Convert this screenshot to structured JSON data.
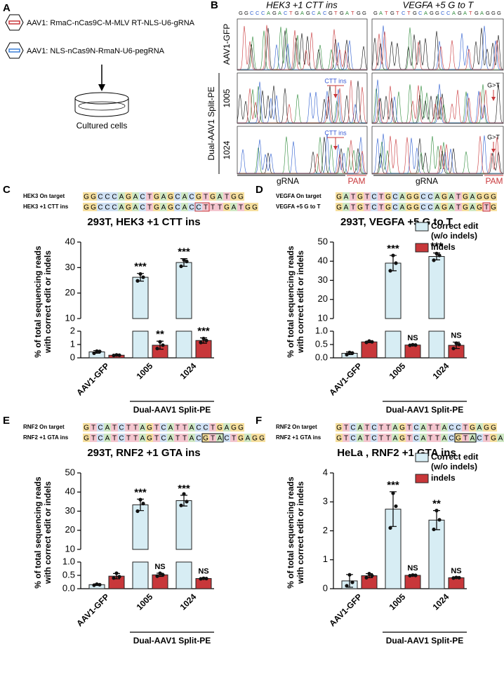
{
  "panel_labels": [
    "A",
    "B",
    "C",
    "D",
    "E",
    "F"
  ],
  "panel_a": {
    "constructs": [
      "AAV1: RmaC-nCas9C-M-MLV RT-NLS-U6-gRNA",
      "AAV1: NLS-nCas9N-RmaN-U6-pegRNA"
    ],
    "target": "Cultured cells"
  },
  "panel_b": {
    "columns": [
      {
        "title": "HEK3 +1 CTT ins",
        "sequence": "GGCCCAGACTGAGCACGTGATGG",
        "edit_label": "CTT ins"
      },
      {
        "title": "VEGFA +5 G to T",
        "sequence": "GATGTCTGCAGGCCAGATGAGGG",
        "edit_label": "G>T"
      }
    ],
    "rows": [
      "AAV1-GFP",
      "1005",
      "1024"
    ],
    "group_label": "Dual-AAV1 Split-PE",
    "footer": [
      "gRNA",
      "PAM"
    ]
  },
  "chart_data": [
    {
      "type": "bar",
      "title": "293T, HEK3 +1 CTT ins",
      "sequences": [
        {
          "label": "HEK3 On target",
          "sequence": "GGCCCAGACTGAGCACGTGATGG"
        },
        {
          "label": "HEK3 +1 CTT ins",
          "sequence": "GGCCCAGACTGAGCACCTTTGATGG"
        }
      ],
      "y_label": [
        "% of total sequencing reads",
        "with correct edit or indels"
      ],
      "categories": [
        "AAV1-GFP",
        "1005",
        "1024"
      ],
      "group_label": "Dual-AAV1 Split-PE",
      "ylim_lower": [
        0,
        2
      ],
      "yticks_lower": [
        0,
        1,
        2
      ],
      "ylim_upper": [
        10,
        40
      ],
      "yticks_upper": [
        10,
        20,
        30,
        40
      ],
      "legend": false,
      "series": [
        {
          "name": "Correct edit (w/o indels)",
          "color": "#d7edf4",
          "values": [
            0.45,
            26.2,
            32
          ],
          "errors": [
            0.1,
            1.5,
            1.5
          ],
          "points": [
            [
              0.35,
              0.5,
              0.48
            ],
            [
              24.8,
              27.5,
              26.2
            ],
            [
              30.5,
              33,
              32.4
            ]
          ],
          "annotations": [
            null,
            "***",
            "***"
          ]
        },
        {
          "name": "indels",
          "color": "#c8373a",
          "values": [
            0.2,
            0.95,
            1.3
          ],
          "errors": [
            0.05,
            0.3,
            0.2
          ],
          "points": [
            [
              0.18,
              0.22,
              0.2
            ],
            [
              0.7,
              1.2,
              0.95
            ],
            [
              1.15,
              1.45,
              1.3
            ]
          ],
          "annotations": [
            null,
            "**",
            "***"
          ]
        }
      ]
    },
    {
      "type": "bar",
      "title": "293T, VEGFA +5 G to T",
      "sequences": [
        {
          "label": "VEGFA On target",
          "sequence": "GATGTCTGCAGGCCAGATGAGGG"
        },
        {
          "label": "VEGFA +5 G to T",
          "sequence": "GATGTCTGCAGGCCAGATGAGTG"
        }
      ],
      "y_label": [
        "% of total sequencing reads",
        "with correct edit or indels"
      ],
      "categories": [
        "AAV1-GFP",
        "1005",
        "1024"
      ],
      "group_label": "Dual-AAV1 Split-PE",
      "ylim_lower": [
        0,
        1
      ],
      "yticks_lower": [
        {
          "value": 0,
          "label": "0.0"
        },
        0.5,
        {
          "value": 1,
          "label": "1.0"
        }
      ],
      "ylim_upper": [
        10,
        50
      ],
      "yticks_upper": [
        10,
        20,
        30,
        40,
        50
      ],
      "legend": true,
      "series": [
        {
          "name": "Correct edit (w/o indels)",
          "color": "#d7edf4",
          "values": [
            0.17,
            39,
            42.5
          ],
          "errors": [
            0.05,
            4,
            1.8
          ],
          "points": [
            [
              0.12,
              0.2,
              0.18
            ],
            [
              35,
              43,
              39
            ],
            [
              40.5,
              44,
              43
            ]
          ],
          "annotations": [
            null,
            "***",
            "***"
          ]
        },
        {
          "name": "indels",
          "color": "#c8373a",
          "values": [
            0.6,
            0.48,
            0.47
          ],
          "errors": [
            0.03,
            0.02,
            0.12
          ],
          "points": [
            [
              0.58,
              0.63,
              0.6
            ],
            [
              0.47,
              0.49,
              0.48
            ],
            [
              0.35,
              0.55,
              0.5
            ]
          ],
          "annotations": [
            null,
            "NS",
            "NS"
          ]
        }
      ]
    },
    {
      "type": "bar",
      "title": "293T, RNF2 +1 GTA ins",
      "sequences": [
        {
          "label": "RNF2 On target",
          "sequence": "GTCATCTTAGTCATTACCTGAGG"
        },
        {
          "label": "RNF2 +1 GTA ins",
          "sequence": "GTCATCTTAGTCATTACGTACTGAGG"
        }
      ],
      "y_label": [
        "% of total sequencing reads",
        "with correct edit or indels"
      ],
      "categories": [
        "AAV1-GFP",
        "1005",
        "1024"
      ],
      "group_label": "Dual-AAV1 Split-PE",
      "ylim_lower": [
        0,
        1
      ],
      "yticks_lower": [
        {
          "value": 0,
          "label": "0.0"
        },
        0.5,
        {
          "value": 1,
          "label": "1.0"
        }
      ],
      "ylim_upper": [
        10,
        50
      ],
      "yticks_upper": [
        10,
        20,
        30,
        40,
        50
      ],
      "legend": false,
      "series": [
        {
          "name": "Correct edit (w/o indels)",
          "color": "#d7edf4",
          "values": [
            0.15,
            33.3,
            35.5
          ],
          "errors": [
            0.03,
            3,
            2.8
          ],
          "points": [
            [
              0.13,
              0.17,
              0.15
            ],
            [
              30,
              36,
              34
            ],
            [
              33,
              39,
              35
            ]
          ],
          "annotations": [
            null,
            "***",
            "***"
          ]
        },
        {
          "name": "indels",
          "color": "#c8373a",
          "values": [
            0.47,
            0.52,
            0.38
          ],
          "errors": [
            0.1,
            0.06,
            0.02
          ],
          "points": [
            [
              0.4,
              0.58,
              0.45
            ],
            [
              0.47,
              0.58,
              0.52
            ],
            [
              0.37,
              0.39,
              0.38
            ]
          ],
          "annotations": [
            null,
            "NS",
            "NS"
          ]
        }
      ]
    },
    {
      "type": "bar",
      "title": "HeLa , RNF2 +1 GTA ins",
      "sequences": [
        {
          "label": "RNF2 On target",
          "sequence": "GTCATCTTAGTCATTACCTGAGG"
        },
        {
          "label": "RNF2 +1 GTA ins",
          "sequence": "GTCATCTTAGTCATTACGTACTGAGG"
        }
      ],
      "y_label": [
        "% of total sequencing reads",
        "with correct edit or indels"
      ],
      "categories": [
        "AAV1-GFP",
        "1005",
        "1024"
      ],
      "group_label": "Dual-AAV1 Split-PE",
      "ylim": [
        0,
        4
      ],
      "yticks": [
        0,
        1,
        2,
        3,
        4
      ],
      "legend": true,
      "series": [
        {
          "name": "Correct edit (w/o indels)",
          "color": "#d7edf4",
          "values": [
            0.27,
            2.75,
            2.37
          ],
          "errors": [
            0.22,
            0.6,
            0.33
          ],
          "points": [
            [
              0.1,
              0.48,
              0.22
            ],
            [
              2.1,
              3.3,
              2.85
            ],
            [
              2.05,
              2.7,
              2.38
            ]
          ],
          "annotations": [
            null,
            "***",
            "**"
          ]
        },
        {
          "name": "indels",
          "color": "#c8373a",
          "values": [
            0.45,
            0.46,
            0.38
          ],
          "errors": [
            0.07,
            0.02,
            0.01
          ],
          "points": [
            [
              0.38,
              0.52,
              0.45
            ],
            [
              0.45,
              0.47,
              0.46
            ],
            [
              0.37,
              0.39,
              0.38
            ]
          ],
          "annotations": [
            null,
            "NS",
            "NS"
          ]
        }
      ]
    }
  ]
}
